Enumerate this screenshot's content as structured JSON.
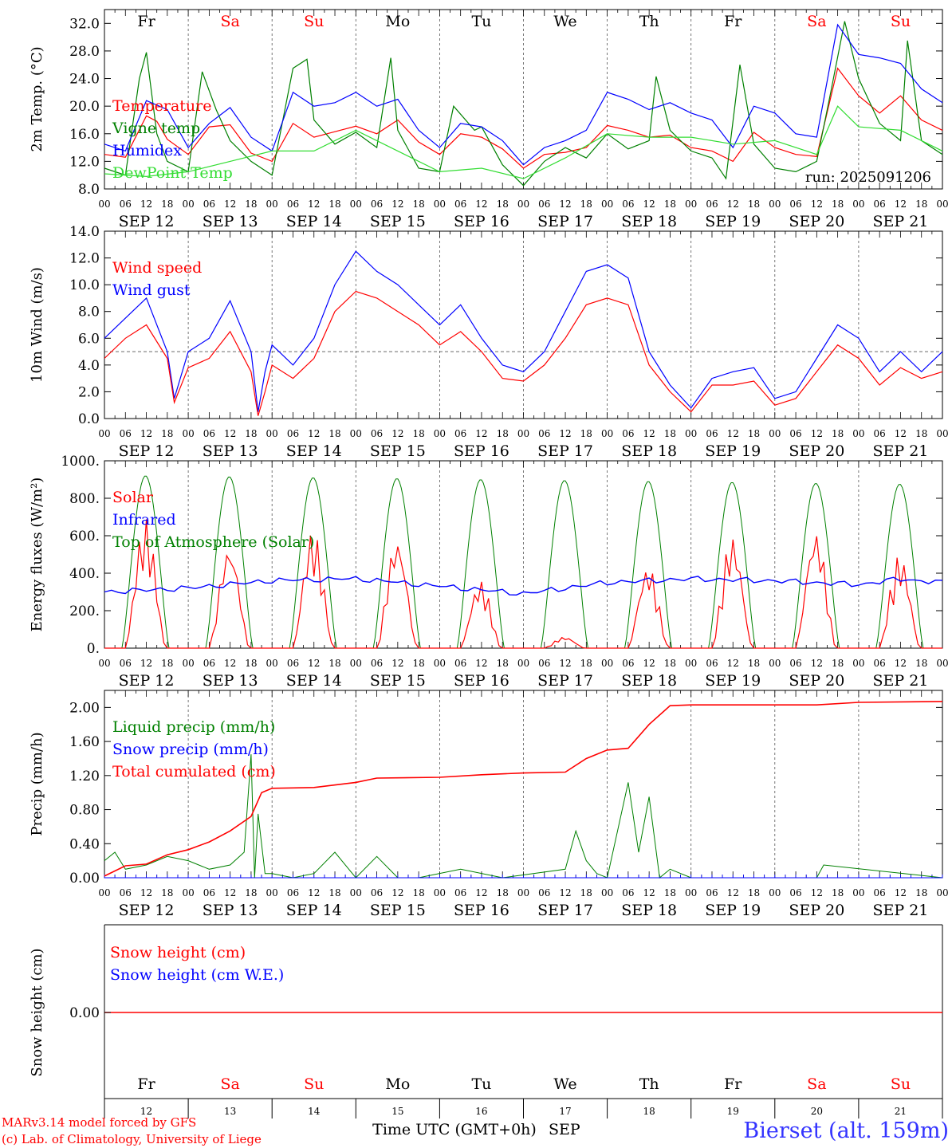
{
  "meta": {
    "run_label": "run: 2025091206",
    "credit_model": "MARv3.14 model forced by GFS",
    "credit_lab": "(c) Lab. of Climatology, University of Liege",
    "location": "Bierset (alt. 159m)",
    "xlabel": "Time UTC (GMT+0h)",
    "month": "SEP"
  },
  "colors": {
    "red": "#ff0000",
    "green": "#008000",
    "blue": "#0000ff",
    "lightgreen": "#33dd33",
    "weekend": "#ff0000",
    "weekday": "#000000",
    "location": "#3333ff"
  },
  "axis": {
    "hour_ticks": [
      "00",
      "06",
      "12",
      "18"
    ],
    "final_tick": "00",
    "day_labels": [
      "SEP 12",
      "SEP 13",
      "SEP 14",
      "SEP 15",
      "SEP 16",
      "SEP 17",
      "SEP 18",
      "SEP 19",
      "SEP 20",
      "SEP 21"
    ],
    "day_numbers": [
      "12",
      "13",
      "14",
      "15",
      "16",
      "17",
      "18",
      "19",
      "20",
      "21"
    ],
    "weekdays": [
      {
        "label": "Fr",
        "weekend": false
      },
      {
        "label": "Sa",
        "weekend": true
      },
      {
        "label": "Su",
        "weekend": true
      },
      {
        "label": "Mo",
        "weekend": false
      },
      {
        "label": "Tu",
        "weekend": false
      },
      {
        "label": "We",
        "weekend": false
      },
      {
        "label": "Th",
        "weekend": false
      },
      {
        "label": "Fr",
        "weekend": false
      },
      {
        "label": "Sa",
        "weekend": true
      },
      {
        "label": "Su",
        "weekend": true
      }
    ]
  },
  "chart_data": [
    {
      "type": "line",
      "ylabel": "2m Temp. (°C)",
      "ylim": [
        8,
        34
      ],
      "yticks": [
        8,
        12,
        16,
        20,
        24,
        28,
        32
      ],
      "ytick_labels": [
        "8.0",
        "12.0",
        "16.0",
        "20.0",
        "24.0",
        "28.0",
        "32.0"
      ],
      "x_unit": "hours since 2025-09-12 00 UTC",
      "xlim": [
        0,
        240
      ],
      "grid": "vertical dashed lines at day boundaries",
      "legend_position": "top-left",
      "series": [
        {
          "name": "Temperature",
          "color": "#ff0000",
          "x": [
            0,
            6,
            12,
            15,
            18,
            24,
            30,
            36,
            42,
            48,
            54,
            60,
            66,
            72,
            78,
            84,
            90,
            96,
            102,
            108,
            114,
            120,
            126,
            132,
            138,
            144,
            150,
            156,
            162,
            168,
            174,
            180,
            186,
            192,
            198,
            204,
            210,
            216,
            222,
            228,
            234,
            240
          ],
          "y": [
            13.0,
            12.6,
            18.6,
            17.8,
            15.2,
            13.0,
            17.0,
            17.3,
            13.2,
            12.0,
            17.5,
            15.5,
            16.3,
            17.1,
            16.0,
            18.0,
            14.8,
            13.0,
            16.0,
            15.5,
            13.8,
            11.0,
            13.0,
            13.3,
            14.0,
            17.2,
            16.5,
            15.5,
            15.8,
            14.0,
            13.5,
            12.0,
            16.2,
            14.0,
            13.0,
            12.7,
            25.5,
            21.5,
            19.0,
            21.5,
            18.0,
            16.5
          ]
        },
        {
          "name": "Vigne temp",
          "color": "#008000",
          "x": [
            0,
            6,
            10,
            12,
            15,
            18,
            24,
            28,
            32,
            36,
            42,
            48,
            54,
            58,
            60,
            66,
            72,
            78,
            82,
            84,
            90,
            96,
            100,
            106,
            108,
            114,
            120,
            126,
            132,
            138,
            144,
            150,
            156,
            158,
            162,
            168,
            174,
            178,
            182,
            186,
            192,
            198,
            204,
            208,
            212,
            216,
            222,
            228,
            230,
            234,
            240
          ],
          "y": [
            11.0,
            10.0,
            24.0,
            27.8,
            16.0,
            12.0,
            10.5,
            25.0,
            19.5,
            15.0,
            12.0,
            10.0,
            25.5,
            26.8,
            18.0,
            14.5,
            16.2,
            14.0,
            27.0,
            16.5,
            11.0,
            10.5,
            20.0,
            16.5,
            17.0,
            11.5,
            8.5,
            12.0,
            14.0,
            12.5,
            16.0,
            13.8,
            15.0,
            24.3,
            16.5,
            13.5,
            12.5,
            9.5,
            26.0,
            14.5,
            11.0,
            10.5,
            12.0,
            22.0,
            32.3,
            24.0,
            17.5,
            15.0,
            29.5,
            15.0,
            13.0
          ]
        },
        {
          "name": "Humidex",
          "color": "#0000ff",
          "x": [
            0,
            6,
            12,
            18,
            24,
            30,
            36,
            42,
            48,
            54,
            60,
            66,
            72,
            78,
            84,
            90,
            96,
            102,
            108,
            114,
            120,
            126,
            132,
            138,
            144,
            150,
            156,
            162,
            168,
            174,
            180,
            186,
            192,
            198,
            204,
            210,
            216,
            222,
            228,
            234,
            240
          ],
          "y": [
            14.5,
            13.5,
            20.8,
            19.5,
            14.0,
            17.5,
            19.8,
            15.5,
            13.5,
            22.0,
            20.0,
            20.5,
            22.0,
            20.0,
            21.0,
            16.5,
            14.0,
            17.5,
            17.0,
            15.0,
            11.5,
            14.0,
            15.0,
            16.5,
            22.0,
            21.0,
            19.5,
            20.5,
            19.0,
            18.0,
            14.0,
            20.0,
            19.0,
            16.0,
            15.5,
            31.8,
            27.5,
            27.0,
            26.2,
            22.5,
            20.5
          ]
        },
        {
          "name": "DewPoint Temp",
          "color": "#33dd33",
          "x": [
            0,
            12,
            24,
            36,
            48,
            60,
            72,
            84,
            96,
            108,
            120,
            132,
            144,
            156,
            168,
            180,
            192,
            204,
            210,
            216,
            228,
            240
          ],
          "y": [
            10.2,
            9.8,
            10.5,
            12.0,
            13.5,
            13.5,
            16.5,
            13.5,
            10.5,
            11.0,
            9.5,
            12.5,
            16.0,
            15.5,
            15.5,
            14.5,
            15.0,
            13.0,
            20.0,
            17.0,
            16.5,
            13.5
          ]
        }
      ]
    },
    {
      "type": "line",
      "ylabel": "10m Wind (m/s)",
      "ylim": [
        0,
        14
      ],
      "yticks": [
        0,
        2,
        4,
        6,
        8,
        10,
        12,
        14
      ],
      "ytick_labels": [
        "0.0",
        "2.0",
        "4.0",
        "6.0",
        "8.0",
        "10.0",
        "12.0",
        "14.0"
      ],
      "reference_line": 5.0,
      "legend_position": "top-left",
      "series": [
        {
          "name": "Wind speed",
          "color": "#ff0000",
          "x": [
            0,
            6,
            12,
            18,
            20,
            24,
            30,
            36,
            42,
            44,
            46,
            48,
            54,
            60,
            66,
            72,
            78,
            84,
            90,
            96,
            102,
            108,
            114,
            120,
            126,
            132,
            138,
            144,
            150,
            156,
            162,
            168,
            174,
            180,
            186,
            192,
            198,
            204,
            210,
            216,
            222,
            228,
            234,
            240
          ],
          "y": [
            4.5,
            6.0,
            7.0,
            4.5,
            1.2,
            3.8,
            4.5,
            6.5,
            3.5,
            0.2,
            2.0,
            4.0,
            3.0,
            4.5,
            8.0,
            9.5,
            9.0,
            8.0,
            7.0,
            5.5,
            6.5,
            5.0,
            3.0,
            2.8,
            4.0,
            6.0,
            8.5,
            9.0,
            8.5,
            4.0,
            2.0,
            0.5,
            2.5,
            2.5,
            2.8,
            1.0,
            1.5,
            3.5,
            5.5,
            4.5,
            2.5,
            3.8,
            3.0,
            3.5
          ]
        },
        {
          "name": "Wind gust",
          "color": "#0000ff",
          "x": [
            0,
            6,
            12,
            18,
            20,
            24,
            30,
            36,
            42,
            44,
            46,
            48,
            54,
            60,
            66,
            72,
            78,
            84,
            90,
            96,
            102,
            108,
            114,
            120,
            126,
            132,
            138,
            144,
            150,
            156,
            162,
            168,
            174,
            180,
            186,
            192,
            198,
            204,
            210,
            216,
            222,
            228,
            234,
            240
          ],
          "y": [
            6.0,
            7.5,
            9.0,
            5.0,
            1.5,
            5.0,
            6.0,
            8.8,
            5.0,
            0.5,
            3.5,
            5.5,
            4.0,
            6.0,
            10.0,
            12.5,
            11.0,
            10.0,
            8.5,
            7.0,
            8.5,
            6.0,
            4.0,
            3.5,
            5.0,
            8.0,
            11.0,
            11.5,
            10.5,
            5.0,
            2.5,
            0.8,
            3.0,
            3.5,
            3.8,
            1.5,
            2.0,
            4.5,
            7.0,
            6.0,
            3.5,
            5.0,
            3.5,
            5.0
          ]
        }
      ]
    },
    {
      "type": "line",
      "ylabel": "Energy fluxes (W/m²)",
      "ylim": [
        0,
        1000
      ],
      "yticks": [
        0,
        200,
        400,
        600,
        800,
        1000
      ],
      "ytick_labels": [
        "0.",
        "200.",
        "400.",
        "600.",
        "800.",
        "1000."
      ],
      "legend_position": "top-left",
      "series": [
        {
          "name": "Solar",
          "color": "#ff0000",
          "peaks_by_day": [
            690,
            550,
            630,
            590,
            360,
            60,
            440,
            600,
            630,
            500
          ]
        },
        {
          "name": "Infrared",
          "color": "#0000ff",
          "x": [
            0,
            24,
            48,
            72,
            96,
            120,
            144,
            168,
            192,
            216,
            228,
            240
          ],
          "y": [
            300,
            320,
            360,
            370,
            330,
            290,
            350,
            370,
            360,
            340,
            370,
            350
          ]
        },
        {
          "name": "Top of Atmosphere (Solar)",
          "color": "#008000",
          "peaks_by_day": [
            920,
            915,
            910,
            905,
            900,
            895,
            890,
            885,
            880,
            875
          ]
        }
      ]
    },
    {
      "type": "line",
      "ylabel": "Precip (mm/h)",
      "ylim": [
        0,
        2.2
      ],
      "yticks": [
        0,
        0.4,
        0.8,
        1.2,
        1.6,
        2.0
      ],
      "ytick_labels": [
        "0.00",
        "0.40",
        "0.80",
        "1.20",
        "1.60",
        "2.00"
      ],
      "legend_position": "top-left",
      "series": [
        {
          "name": "Liquid precip (mm/h)",
          "color": "#008000",
          "x": [
            0,
            3,
            6,
            12,
            18,
            24,
            30,
            36,
            40,
            42,
            43,
            44,
            46,
            48,
            54,
            60,
            66,
            70,
            72,
            78,
            84,
            90,
            102,
            114,
            132,
            135,
            138,
            141,
            144,
            150,
            153,
            156,
            159,
            162,
            168,
            204,
            206,
            240
          ],
          "y": [
            0.2,
            0.3,
            0.1,
            0.15,
            0.25,
            0.2,
            0.1,
            0.15,
            0.3,
            1.45,
            0.0,
            0.75,
            0.05,
            0.05,
            0.0,
            0.05,
            0.3,
            0.1,
            0.0,
            0.25,
            0.0,
            0.0,
            0.1,
            0.0,
            0.1,
            0.55,
            0.2,
            0.05,
            0.0,
            1.12,
            0.3,
            0.95,
            0.0,
            0.1,
            0.0,
            0.0,
            0.15,
            0.0
          ]
        },
        {
          "name": "Snow precip (mm/h)",
          "color": "#0000ff",
          "x": [
            0,
            240
          ],
          "y": [
            0,
            0
          ]
        },
        {
          "name": "Total cumulated (cm)",
          "color": "#ff0000",
          "x": [
            0,
            6,
            12,
            18,
            24,
            30,
            36,
            42,
            45,
            48,
            60,
            72,
            78,
            96,
            108,
            120,
            132,
            138,
            144,
            150,
            156,
            162,
            168,
            204,
            216,
            240
          ],
          "y": [
            0.02,
            0.14,
            0.16,
            0.27,
            0.33,
            0.42,
            0.55,
            0.72,
            1.0,
            1.05,
            1.06,
            1.12,
            1.17,
            1.18,
            1.21,
            1.23,
            1.24,
            1.4,
            1.5,
            1.52,
            1.8,
            2.02,
            2.03,
            2.03,
            2.06,
            2.07
          ]
        }
      ]
    },
    {
      "type": "line",
      "ylabel": "Snow height (cm)",
      "yticks": [
        0
      ],
      "ytick_labels": [
        "0.00"
      ],
      "legend_position": "top-left",
      "series": [
        {
          "name": "Snow height (cm)",
          "color": "#ff0000",
          "x": [
            0,
            240
          ],
          "y": [
            0,
            0
          ]
        },
        {
          "name": "Snow height (cm W.E.)",
          "color": "#0000ff",
          "x": [
            0,
            240
          ],
          "y": [
            0,
            0
          ]
        }
      ]
    }
  ]
}
